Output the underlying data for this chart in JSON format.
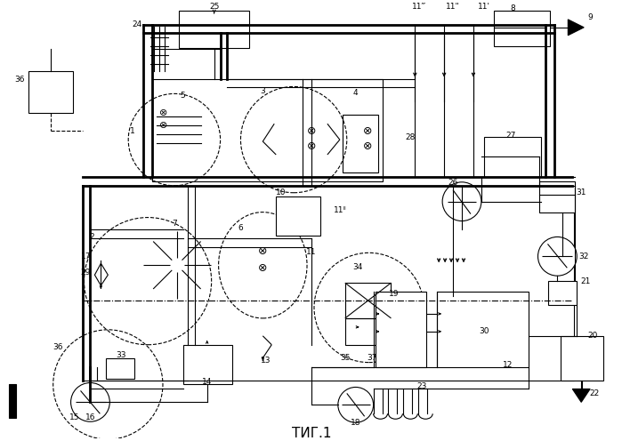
{
  "title": "ΤИГ.1",
  "bg_color": "#ffffff",
  "line_color": "#000000",
  "fig_width": 6.99,
  "fig_height": 4.96,
  "dpi": 100
}
